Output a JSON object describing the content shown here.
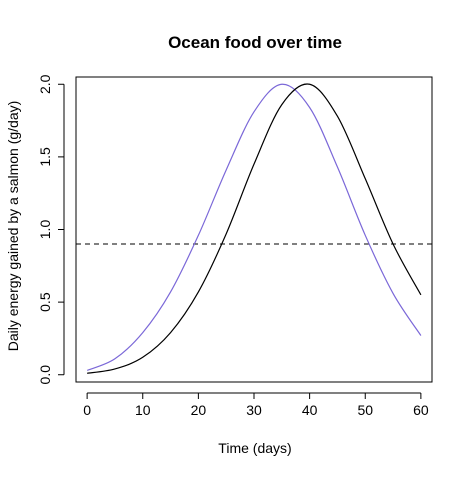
{
  "chart_data": {
    "type": "line",
    "title": "Ocean food over time",
    "xlabel": "Time (days)",
    "ylabel": "Daily energy gained by a salmon (g/day)",
    "xlim": [
      -2,
      62
    ],
    "ylim": [
      -0.05,
      2.05
    ],
    "x_ticks": [
      "0",
      "10",
      "20",
      "30",
      "40",
      "50",
      "60"
    ],
    "y_ticks": [
      "0.0",
      "0.5",
      "1.0",
      "1.5",
      "2.0"
    ],
    "grid": false,
    "legend": "none",
    "x": [
      0,
      5,
      10,
      15,
      20,
      25,
      30,
      35,
      40,
      45,
      50,
      55,
      60
    ],
    "series": [
      {
        "color": "#7b68d8",
        "values": [
          0.03,
          0.11,
          0.29,
          0.57,
          0.96,
          1.41,
          1.81,
          2.0,
          1.84,
          1.43,
          0.96,
          0.56,
          0.27
        ]
      },
      {
        "color": "#000000",
        "values": [
          0.01,
          0.04,
          0.12,
          0.29,
          0.57,
          0.97,
          1.45,
          1.86,
          2.0,
          1.78,
          1.35,
          0.9,
          0.55
        ]
      }
    ],
    "reference_line": {
      "y": 0.9,
      "style": "dashed",
      "color": "#000000"
    }
  }
}
